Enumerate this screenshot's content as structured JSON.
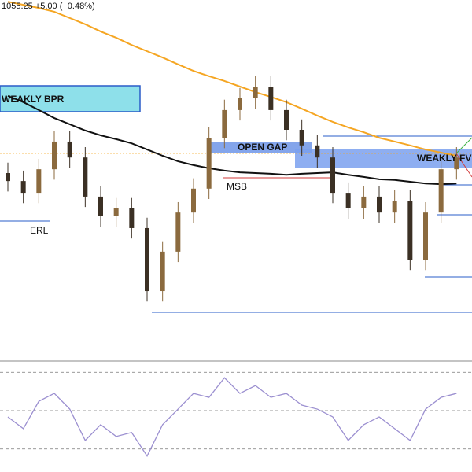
{
  "chart_data": {
    "type": "candlestick",
    "header": "1055.25  +5.00 (+0.48%)",
    "ylim": [
      0,
      100
    ],
    "up_color": "#8b6a3e",
    "down_color": "#3b3024",
    "open": [
      50.0,
      47.7,
      44.3,
      51.1,
      59.1,
      54.5,
      43.2,
      37.5,
      39.8,
      34.1,
      15.9,
      27.3,
      38.6,
      45.5,
      60.2,
      68.2,
      71.6,
      75.0,
      68.2,
      62.5,
      58.0,
      54.5,
      44.3,
      39.8,
      43.2,
      38.6,
      42.0,
      25.0,
      38.6,
      51.1
    ],
    "high": [
      53.0,
      50.7,
      54.1,
      62.1,
      62.1,
      57.5,
      46.2,
      42.8,
      42.8,
      37.1,
      30.3,
      41.6,
      48.5,
      63.2,
      71.2,
      74.6,
      78.0,
      78.0,
      71.2,
      65.5,
      61.0,
      57.5,
      47.3,
      46.2,
      46.2,
      45.0,
      45.0,
      41.6,
      54.1,
      57.5
    ],
    "low": [
      44.7,
      41.3,
      41.3,
      48.1,
      51.5,
      40.2,
      34.5,
      34.5,
      31.1,
      12.9,
      12.9,
      24.3,
      35.6,
      42.5,
      57.2,
      65.2,
      68.6,
      65.2,
      59.5,
      55.0,
      51.5,
      41.3,
      36.8,
      36.8,
      35.6,
      35.6,
      22.0,
      22.0,
      35.6,
      48.1
    ],
    "close": [
      47.7,
      44.3,
      51.1,
      59.1,
      54.5,
      43.2,
      37.5,
      39.8,
      34.1,
      15.9,
      27.3,
      38.6,
      45.5,
      60.2,
      68.2,
      71.6,
      75.0,
      68.2,
      62.5,
      58.0,
      54.5,
      44.3,
      39.8,
      43.2,
      38.6,
      42.0,
      25.0,
      38.6,
      51.1,
      54.5
    ],
    "series": [
      {
        "color": "#f5a623",
        "values": [
          99.5,
          98.6,
          97.7,
          96.6,
          94.8,
          93.0,
          90.9,
          89.1,
          87.0,
          85.2,
          83.4,
          81.4,
          79.5,
          78.0,
          76.6,
          75.0,
          73.4,
          72.0,
          70.5,
          68.6,
          66.6,
          64.8,
          63.2,
          61.8,
          60.2,
          59.1,
          58.0,
          56.8,
          55.9,
          55.0
        ]
      },
      {
        "color": "#111111",
        "values": [
          72.3,
          70.5,
          68.2,
          65.9,
          64.1,
          62.3,
          60.9,
          59.8,
          58.6,
          56.8,
          55.0,
          53.4,
          52.3,
          51.4,
          50.7,
          50.2,
          50.0,
          49.8,
          49.5,
          49.8,
          50.0,
          50.2,
          49.5,
          48.9,
          48.2,
          48.0,
          47.5,
          47.0,
          46.8,
          47.0
        ]
      }
    ],
    "annotations": [
      "WEAKLY BPR",
      "OPEN GAP",
      "WEAKLY FV",
      "MSB",
      "ERL"
    ],
    "rsi": {
      "color": "#9b8fd0",
      "ylim": [
        10,
        90
      ],
      "levels": [
        80,
        50,
        20
      ],
      "values": [
        45.1,
        35.9,
        57.3,
        63.5,
        51.2,
        26.7,
        39.0,
        29.8,
        32.9,
        14.5,
        39.0,
        51.2,
        63.5,
        60.4,
        75.7,
        63.5,
        69.6,
        60.4,
        63.5,
        54.3,
        51.2,
        45.1,
        26.7,
        39.0,
        45.1,
        35.9,
        26.7,
        51.2,
        60.4,
        63.5
      ]
    }
  }
}
